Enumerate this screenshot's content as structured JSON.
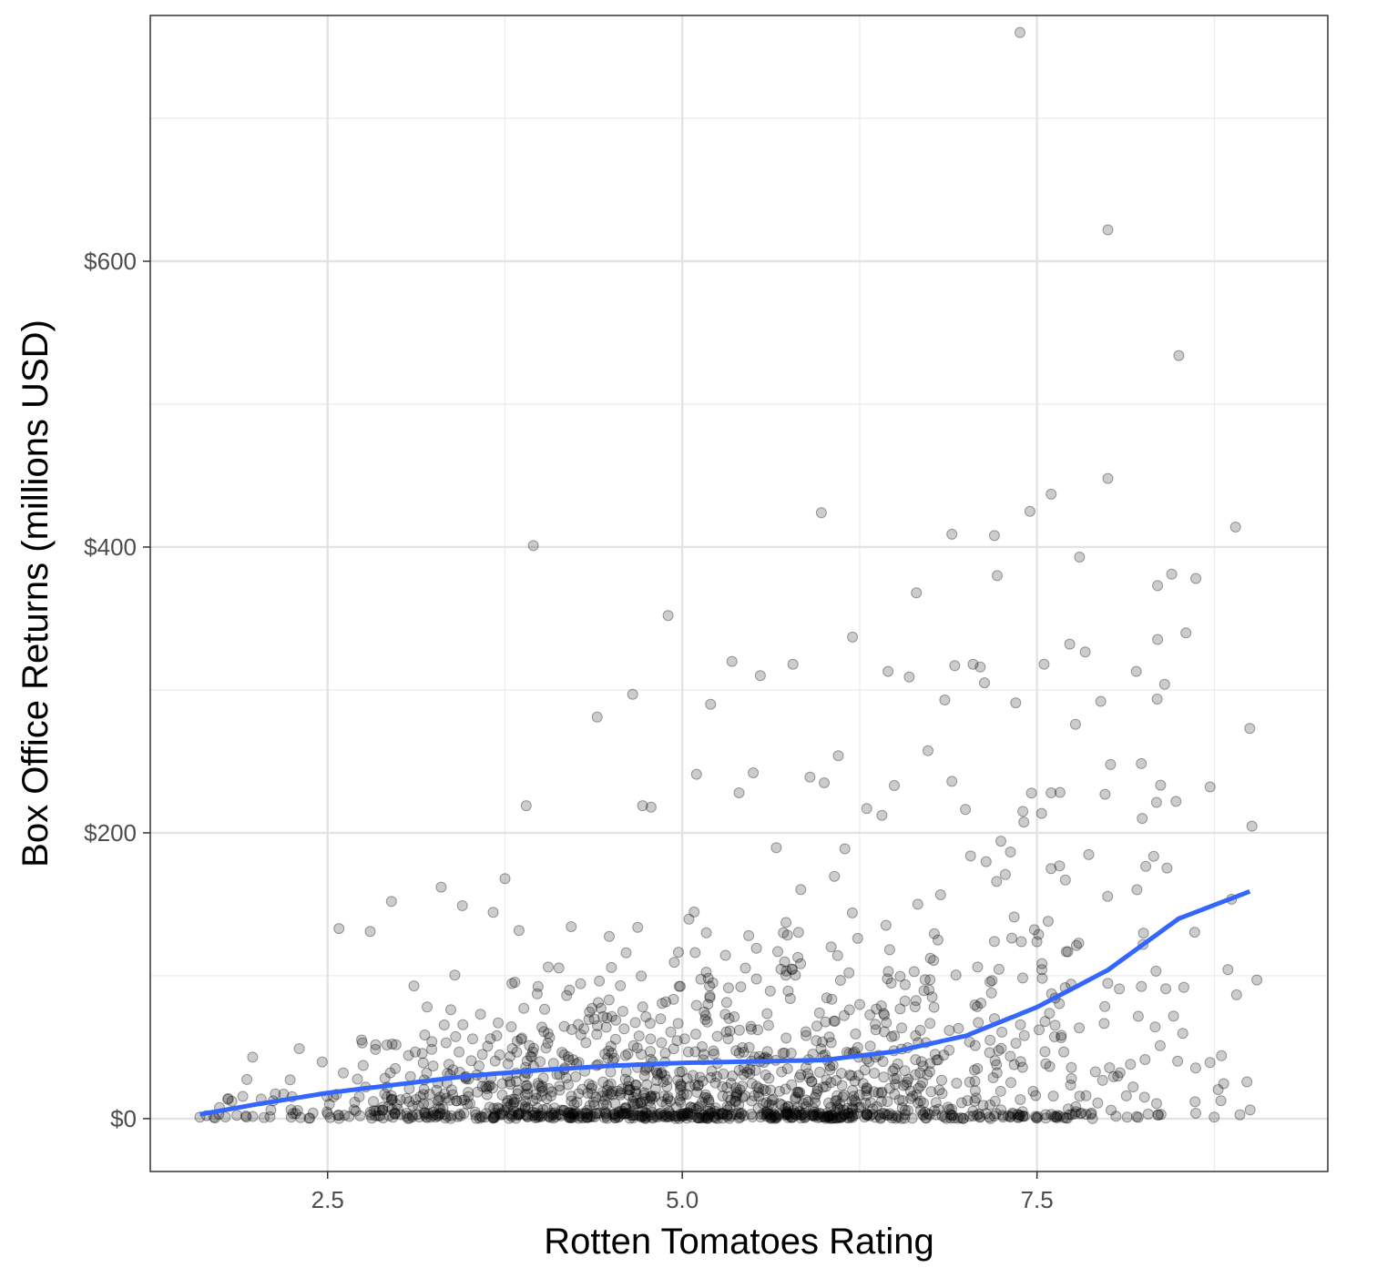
{
  "chart_data": {
    "type": "scatter",
    "title": "",
    "xlabel": "Rotten Tomatoes Rating",
    "ylabel": "Box Office Returns (millions USD)",
    "xlim": [
      1.25,
      9.55
    ],
    "ylim": [
      -37,
      772
    ],
    "x_ticks": [
      2.5,
      5.0,
      7.5
    ],
    "x_tick_labels": [
      "2.5",
      "5.0",
      "7.5"
    ],
    "y_ticks": [
      0,
      200,
      400,
      600
    ],
    "y_tick_labels": [
      "$0",
      "$200",
      "$400",
      "$600"
    ],
    "grid": true,
    "point_color": "#000000",
    "point_opacity": 0.2,
    "smooth_color": "#3366FF",
    "points_sampled": {
      "x": [
        7.38,
        8.0,
        8.5,
        8.0,
        7.6,
        7.45,
        5.98,
        8.9,
        7.2,
        6.9,
        3.95,
        7.8,
        7.22,
        8.62,
        8.45,
        8.35,
        6.65,
        4.9,
        8.55,
        6.2,
        4.65,
        5.35,
        5.78,
        7.1,
        5.55,
        6.92,
        7.55,
        8.2,
        6.45,
        6.6,
        7.13,
        7.05,
        8.4,
        7.6,
        5.4,
        4.72,
        6.1,
        7.35,
        5.2,
        6.85,
        7.95,
        9.0,
        4.4,
        6.3,
        5.1,
        5.5,
        4.78,
        3.9,
        6.9,
        7.4,
        6.0,
        5.9,
        7.98,
        8.48,
        7.7,
        3.75,
        2.58,
        2.8,
        2.95,
        3.3,
        3.45,
        1.6,
        1.8,
        2.1,
        2.3,
        8.8,
        9.05
      ],
      "y": [
        760,
        622,
        534,
        448,
        437,
        425,
        424,
        414,
        408,
        409,
        401,
        393,
        380,
        378,
        381,
        373,
        368,
        352,
        340,
        337,
        297,
        320,
        318,
        316,
        310,
        317,
        318,
        313,
        313,
        309,
        305,
        318,
        304,
        228,
        228,
        219,
        254,
        291,
        290,
        293,
        292,
        273,
        281,
        217,
        241,
        242,
        218,
        219,
        236,
        215,
        235,
        239,
        227,
        222,
        167,
        168,
        133,
        131,
        152,
        162,
        149,
        1,
        14,
        6,
        49,
        44,
        97
      ]
    },
    "smooth_line": {
      "x": [
        1.6,
        2.0,
        2.5,
        3.0,
        3.5,
        4.0,
        4.5,
        5.0,
        5.5,
        6.0,
        6.5,
        7.0,
        7.5,
        8.0,
        8.5,
        9.0
      ],
      "y": [
        3,
        10,
        18,
        24,
        30,
        34,
        37,
        39,
        40,
        41,
        47,
        58,
        78,
        104,
        140,
        159
      ]
    }
  }
}
